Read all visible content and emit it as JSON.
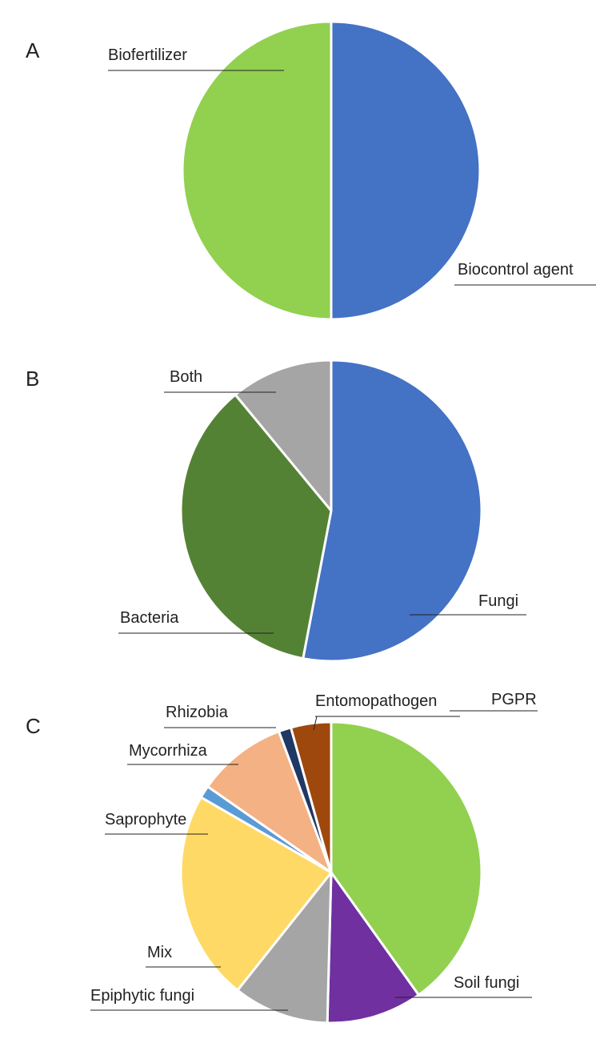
{
  "chart_data": [
    {
      "panel": "A",
      "type": "pie",
      "title": "",
      "slices": [
        {
          "label": "Biocontrol agent",
          "value": 50,
          "color": "#4472C4"
        },
        {
          "label": "Biofertilizer",
          "value": 50,
          "color": "#92D050"
        }
      ]
    },
    {
      "panel": "B",
      "type": "pie",
      "title": "",
      "slices": [
        {
          "label": "Fungi",
          "value": 53,
          "color": "#4472C4"
        },
        {
          "label": "Bacteria",
          "value": 36,
          "color": "#548235"
        },
        {
          "label": "Both",
          "value": 11,
          "color": "#A5A5A5"
        }
      ]
    },
    {
      "panel": "C",
      "type": "pie",
      "title": "",
      "slices": [
        {
          "label": "PGPR",
          "value": 39,
          "color": "#92D050"
        },
        {
          "label": "Soil fungi",
          "value": 10,
          "color": "#7030A0"
        },
        {
          "label": "Epiphytic fungi",
          "value": 10,
          "color": "#A5A5A5"
        },
        {
          "label": "Mix",
          "value": 22,
          "color": "#FFD966"
        },
        {
          "label": "Saprophyte",
          "value": 1.3,
          "color": "#5B9BD5"
        },
        {
          "label": "Mycorrhiza",
          "value": 9.4,
          "color": "#F4B183"
        },
        {
          "label": "Rhizobia",
          "value": 1.3,
          "color": "#1F3864"
        },
        {
          "label": "Entomopathogen",
          "value": 4.2,
          "color": "#9E480E"
        }
      ]
    }
  ]
}
